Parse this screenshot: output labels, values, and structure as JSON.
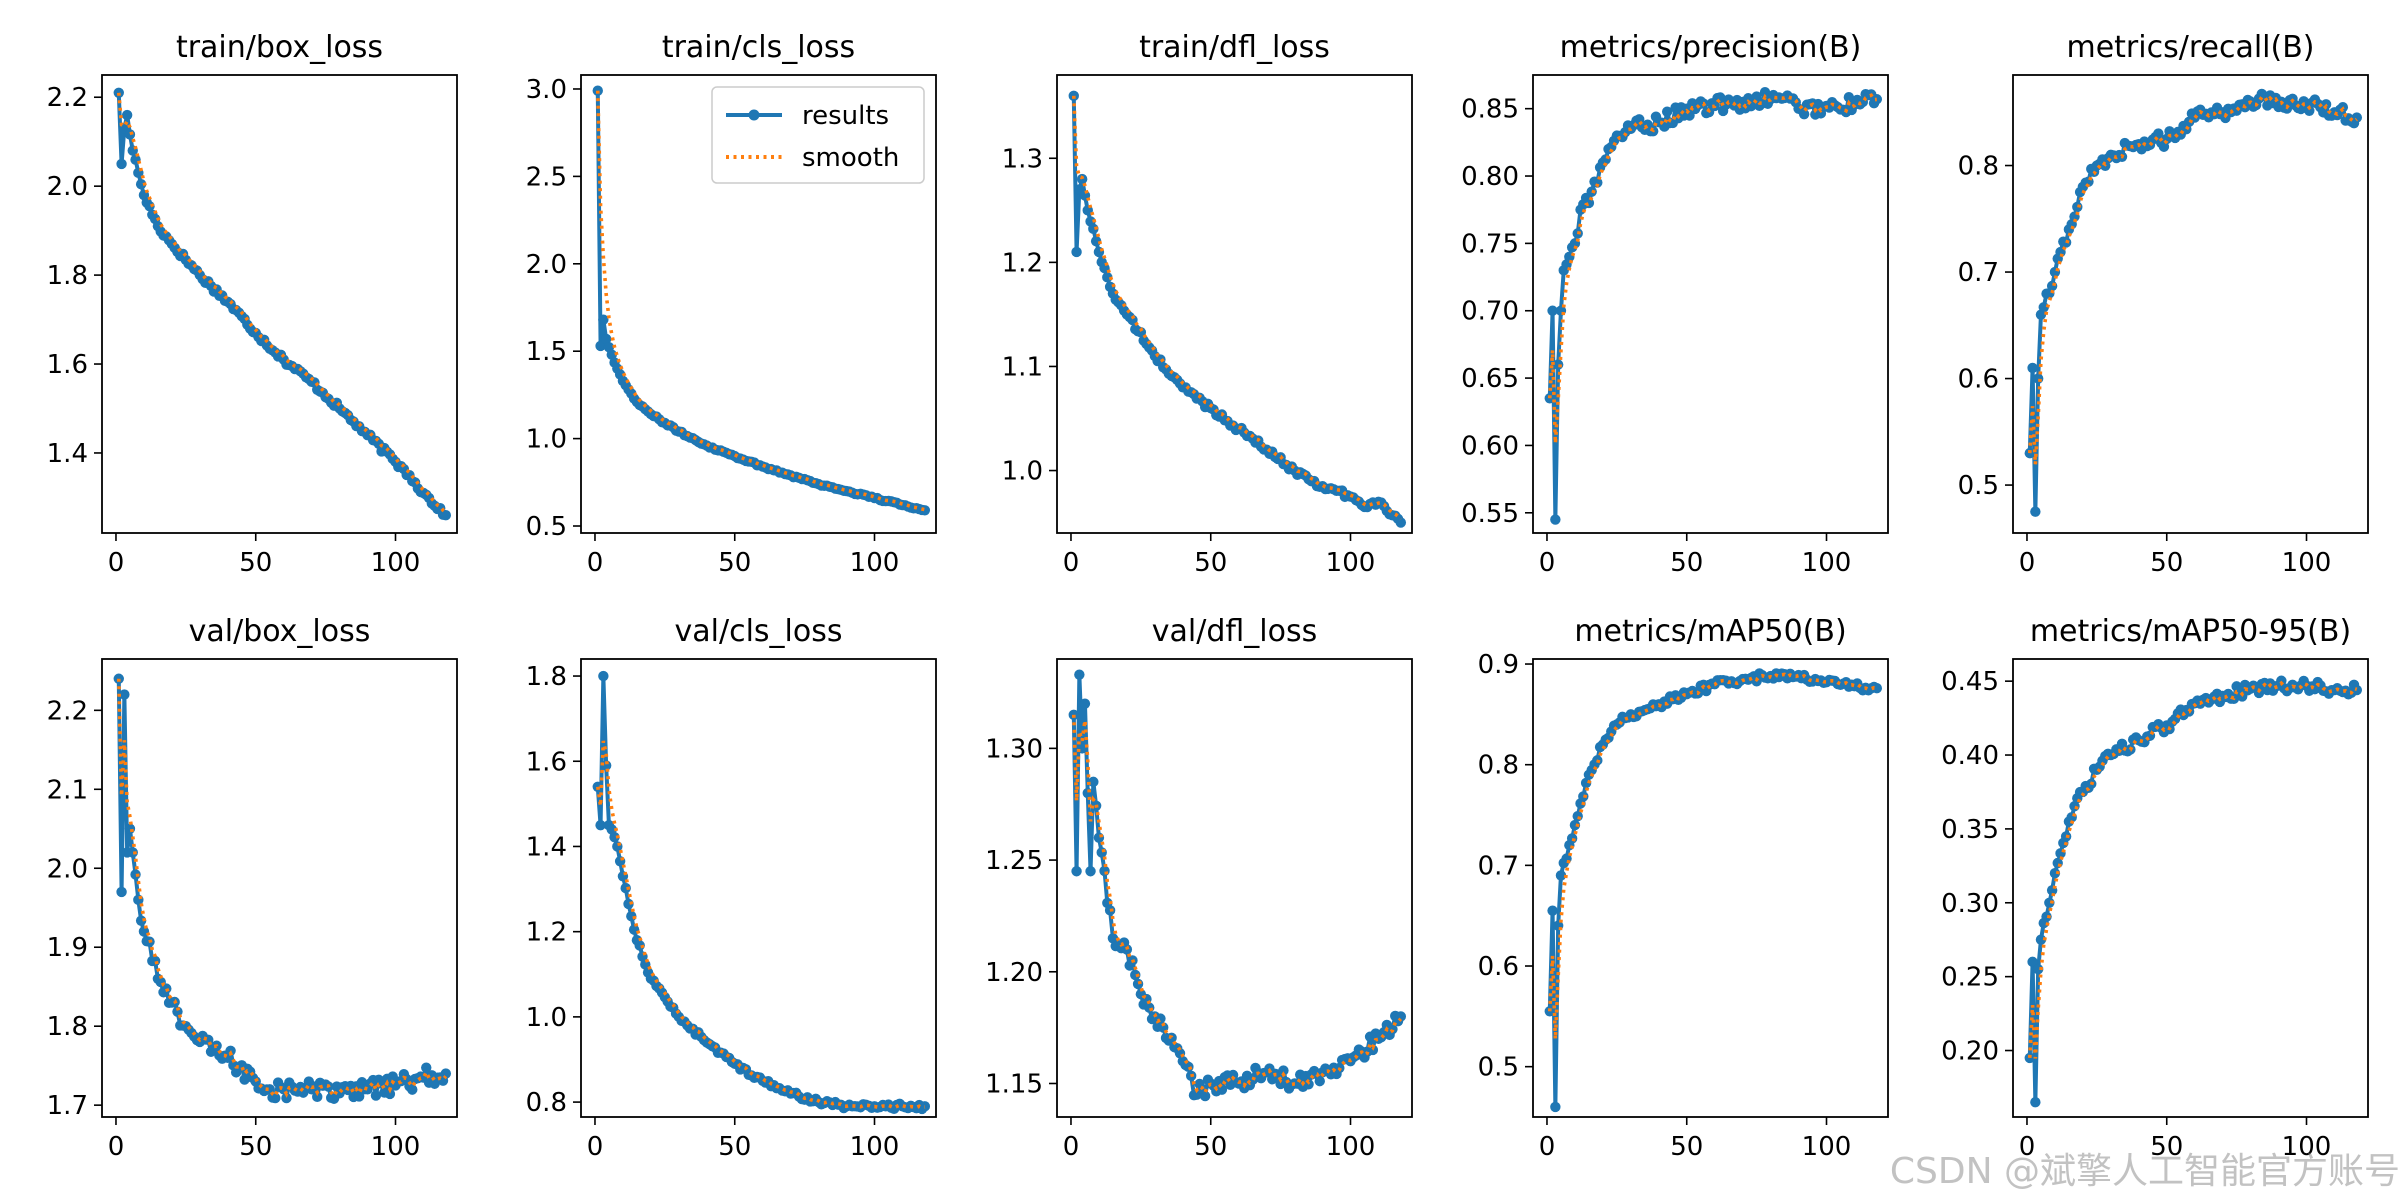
{
  "series_labels": {
    "results": "results",
    "smooth": "smooth"
  },
  "colors": {
    "results": "#1f77b4",
    "smooth": "#ff7f0e",
    "axes": "#000000",
    "background": "#ffffff"
  },
  "watermark": "CSDN @斌擎人工智能官方账号",
  "chart_data": [
    {
      "type": "line",
      "title": "train/box_loss",
      "xlim": [
        -5,
        122
      ],
      "ylim": [
        1.22,
        2.25
      ],
      "xticks": [
        0,
        50,
        100
      ],
      "yticks": [
        1.4,
        1.6,
        1.8,
        2.0,
        2.2
      ],
      "ytick_labels": [
        "1.4",
        "1.6",
        "1.8",
        "2.0",
        "2.2"
      ],
      "anchors": [
        [
          1,
          2.21
        ],
        [
          2,
          2.05
        ],
        [
          3,
          2.13
        ],
        [
          4,
          2.16
        ],
        [
          6,
          2.08
        ],
        [
          8,
          2.03
        ],
        [
          10,
          1.98
        ],
        [
          15,
          1.91
        ],
        [
          20,
          1.87
        ],
        [
          30,
          1.8
        ],
        [
          40,
          1.74
        ],
        [
          50,
          1.67
        ],
        [
          60,
          1.61
        ],
        [
          70,
          1.56
        ],
        [
          80,
          1.5
        ],
        [
          90,
          1.44
        ],
        [
          100,
          1.38
        ],
        [
          105,
          1.35
        ],
        [
          110,
          1.31
        ],
        [
          118,
          1.26
        ]
      ],
      "noise": 0.007,
      "smooth": 0.55,
      "legend": false
    },
    {
      "type": "line",
      "title": "train/cls_loss",
      "xlim": [
        -5,
        122
      ],
      "ylim": [
        0.46,
        3.08
      ],
      "xticks": [
        0,
        50,
        100
      ],
      "yticks": [
        0.5,
        1.0,
        1.5,
        2.0,
        2.5,
        3.0
      ],
      "ytick_labels": [
        "0.5",
        "1.0",
        "1.5",
        "2.0",
        "2.5",
        "3.0"
      ],
      "anchors": [
        [
          1,
          2.99
        ],
        [
          2,
          1.53
        ],
        [
          3,
          1.68
        ],
        [
          4,
          1.57
        ],
        [
          6,
          1.48
        ],
        [
          8,
          1.4
        ],
        [
          10,
          1.33
        ],
        [
          15,
          1.21
        ],
        [
          20,
          1.14
        ],
        [
          30,
          1.04
        ],
        [
          40,
          0.96
        ],
        [
          50,
          0.9
        ],
        [
          60,
          0.84
        ],
        [
          70,
          0.79
        ],
        [
          80,
          0.74
        ],
        [
          90,
          0.7
        ],
        [
          100,
          0.66
        ],
        [
          110,
          0.62
        ],
        [
          118,
          0.59
        ]
      ],
      "noise": 0.006,
      "smooth": 0.55,
      "legend": true
    },
    {
      "type": "line",
      "title": "train/dfl_loss",
      "xlim": [
        -5,
        122
      ],
      "ylim": [
        0.94,
        1.38
      ],
      "xticks": [
        0,
        50,
        100
      ],
      "yticks": [
        1.0,
        1.1,
        1.2,
        1.3
      ],
      "ytick_labels": [
        "1.0",
        "1.1",
        "1.2",
        "1.3"
      ],
      "anchors": [
        [
          1,
          1.36
        ],
        [
          2,
          1.21
        ],
        [
          3,
          1.27
        ],
        [
          4,
          1.28
        ],
        [
          6,
          1.25
        ],
        [
          10,
          1.21
        ],
        [
          15,
          1.17
        ],
        [
          20,
          1.15
        ],
        [
          30,
          1.11
        ],
        [
          40,
          1.08
        ],
        [
          50,
          1.06
        ],
        [
          60,
          1.04
        ],
        [
          70,
          1.02
        ],
        [
          80,
          1.0
        ],
        [
          90,
          0.985
        ],
        [
          100,
          0.975
        ],
        [
          105,
          0.965
        ],
        [
          110,
          0.97
        ],
        [
          118,
          0.95
        ]
      ],
      "noise": 0.003,
      "smooth": 0.55,
      "legend": false
    },
    {
      "type": "line",
      "title": "metrics/precision(B)",
      "xlim": [
        -5,
        122
      ],
      "ylim": [
        0.535,
        0.875
      ],
      "xticks": [
        0,
        50,
        100
      ],
      "yticks": [
        0.55,
        0.6,
        0.65,
        0.7,
        0.75,
        0.8,
        0.85
      ],
      "ytick_labels": [
        "0.55",
        "0.60",
        "0.65",
        "0.70",
        "0.75",
        "0.80",
        "0.85"
      ],
      "anchors": [
        [
          1,
          0.635
        ],
        [
          2,
          0.7
        ],
        [
          3,
          0.545
        ],
        [
          4,
          0.66
        ],
        [
          5,
          0.7
        ],
        [
          6,
          0.73
        ],
        [
          8,
          0.74
        ],
        [
          10,
          0.75
        ],
        [
          12,
          0.775
        ],
        [
          15,
          0.78
        ],
        [
          20,
          0.81
        ],
        [
          25,
          0.83
        ],
        [
          30,
          0.835
        ],
        [
          40,
          0.84
        ],
        [
          50,
          0.85
        ],
        [
          60,
          0.852
        ],
        [
          70,
          0.855
        ],
        [
          80,
          0.857
        ],
        [
          85,
          0.858
        ],
        [
          90,
          0.85
        ],
        [
          100,
          0.852
        ],
        [
          110,
          0.853
        ],
        [
          118,
          0.857
        ]
      ],
      "noise": 0.006,
      "smooth": 0.45,
      "legend": false
    },
    {
      "type": "line",
      "title": "metrics/recall(B)",
      "xlim": [
        -5,
        122
      ],
      "ylim": [
        0.455,
        0.885
      ],
      "xticks": [
        0,
        50,
        100
      ],
      "yticks": [
        0.5,
        0.6,
        0.7,
        0.8
      ],
      "ytick_labels": [
        "0.5",
        "0.6",
        "0.7",
        "0.8"
      ],
      "anchors": [
        [
          1,
          0.53
        ],
        [
          2,
          0.61
        ],
        [
          3,
          0.475
        ],
        [
          4,
          0.6
        ],
        [
          5,
          0.66
        ],
        [
          8,
          0.68
        ],
        [
          10,
          0.7
        ],
        [
          15,
          0.74
        ],
        [
          20,
          0.78
        ],
        [
          25,
          0.8
        ],
        [
          30,
          0.81
        ],
        [
          40,
          0.82
        ],
        [
          50,
          0.825
        ],
        [
          60,
          0.845
        ],
        [
          70,
          0.85
        ],
        [
          80,
          0.86
        ],
        [
          85,
          0.865
        ],
        [
          90,
          0.855
        ],
        [
          100,
          0.858
        ],
        [
          110,
          0.85
        ],
        [
          118,
          0.845
        ]
      ],
      "noise": 0.007,
      "smooth": 0.45,
      "legend": false
    },
    {
      "type": "line",
      "title": "val/box_loss",
      "xlim": [
        -5,
        122
      ],
      "ylim": [
        1.685,
        2.265
      ],
      "xticks": [
        0,
        50,
        100
      ],
      "yticks": [
        1.7,
        1.8,
        1.9,
        2.0,
        2.1,
        2.2
      ],
      "ytick_labels": [
        "1.7",
        "1.8",
        "1.9",
        "2.0",
        "2.1",
        "2.2"
      ],
      "anchors": [
        [
          1,
          2.24
        ],
        [
          2,
          1.97
        ],
        [
          3,
          2.22
        ],
        [
          4,
          2.02
        ],
        [
          5,
          2.05
        ],
        [
          6,
          2.02
        ],
        [
          8,
          1.96
        ],
        [
          10,
          1.92
        ],
        [
          15,
          1.86
        ],
        [
          20,
          1.83
        ],
        [
          25,
          1.8
        ],
        [
          30,
          1.78
        ],
        [
          40,
          1.76
        ],
        [
          50,
          1.73
        ],
        [
          55,
          1.72
        ],
        [
          60,
          1.72
        ],
        [
          70,
          1.72
        ],
        [
          80,
          1.715
        ],
        [
          90,
          1.72
        ],
        [
          100,
          1.725
        ],
        [
          110,
          1.735
        ],
        [
          118,
          1.74
        ]
      ],
      "noise": 0.012,
      "smooth": 0.45,
      "legend": false
    },
    {
      "type": "line",
      "title": "val/cls_loss",
      "xlim": [
        -5,
        122
      ],
      "ylim": [
        0.765,
        1.84
      ],
      "xticks": [
        0,
        50,
        100
      ],
      "yticks": [
        0.8,
        1.0,
        1.2,
        1.4,
        1.6,
        1.8
      ],
      "ytick_labels": [
        "0.8",
        "1.0",
        "1.2",
        "1.4",
        "1.6",
        "1.8"
      ],
      "anchors": [
        [
          1,
          1.54
        ],
        [
          2,
          1.45
        ],
        [
          3,
          1.8
        ],
        [
          4,
          1.59
        ],
        [
          5,
          1.45
        ],
        [
          6,
          1.44
        ],
        [
          8,
          1.4
        ],
        [
          10,
          1.33
        ],
        [
          15,
          1.18
        ],
        [
          20,
          1.09
        ],
        [
          30,
          1.0
        ],
        [
          40,
          0.94
        ],
        [
          50,
          0.89
        ],
        [
          60,
          0.85
        ],
        [
          70,
          0.82
        ],
        [
          80,
          0.8
        ],
        [
          90,
          0.79
        ],
        [
          100,
          0.79
        ],
        [
          110,
          0.79
        ],
        [
          118,
          0.79
        ]
      ],
      "noise": 0.006,
      "smooth": 0.5,
      "legend": false
    },
    {
      "type": "line",
      "title": "val/dfl_loss",
      "xlim": [
        -5,
        122
      ],
      "ylim": [
        1.135,
        1.34
      ],
      "xticks": [
        0,
        50,
        100
      ],
      "yticks": [
        1.15,
        1.2,
        1.25,
        1.3
      ],
      "ytick_labels": [
        "1.15",
        "1.20",
        "1.25",
        "1.30"
      ],
      "anchors": [
        [
          1,
          1.315
        ],
        [
          2,
          1.245
        ],
        [
          3,
          1.333
        ],
        [
          4,
          1.3
        ],
        [
          5,
          1.32
        ],
        [
          6,
          1.28
        ],
        [
          7,
          1.245
        ],
        [
          8,
          1.285
        ],
        [
          10,
          1.26
        ],
        [
          15,
          1.215
        ],
        [
          20,
          1.21
        ],
        [
          25,
          1.19
        ],
        [
          30,
          1.18
        ],
        [
          40,
          1.16
        ],
        [
          45,
          1.145
        ],
        [
          50,
          1.15
        ],
        [
          60,
          1.15
        ],
        [
          70,
          1.155
        ],
        [
          80,
          1.15
        ],
        [
          90,
          1.155
        ],
        [
          100,
          1.16
        ],
        [
          110,
          1.17
        ],
        [
          118,
          1.18
        ]
      ],
      "noise": 0.004,
      "smooth": 0.45,
      "legend": false
    },
    {
      "type": "line",
      "title": "metrics/mAP50(B)",
      "xlim": [
        -5,
        122
      ],
      "ylim": [
        0.45,
        0.905
      ],
      "xticks": [
        0,
        50,
        100
      ],
      "yticks": [
        0.5,
        0.6,
        0.7,
        0.8,
        0.9
      ],
      "ytick_labels": [
        "0.5",
        "0.6",
        "0.7",
        "0.8",
        "0.9"
      ],
      "anchors": [
        [
          1,
          0.555
        ],
        [
          2,
          0.655
        ],
        [
          3,
          0.46
        ],
        [
          4,
          0.64
        ],
        [
          5,
          0.69
        ],
        [
          8,
          0.72
        ],
        [
          10,
          0.74
        ],
        [
          15,
          0.79
        ],
        [
          20,
          0.82
        ],
        [
          25,
          0.84
        ],
        [
          30,
          0.85
        ],
        [
          40,
          0.86
        ],
        [
          50,
          0.87
        ],
        [
          60,
          0.88
        ],
        [
          70,
          0.885
        ],
        [
          80,
          0.888
        ],
        [
          90,
          0.889
        ],
        [
          100,
          0.882
        ],
        [
          110,
          0.878
        ],
        [
          118,
          0.876
        ]
      ],
      "noise": 0.004,
      "smooth": 0.45,
      "legend": false
    },
    {
      "type": "line",
      "title": "metrics/mAP50-95(B)",
      "xlim": [
        -5,
        122
      ],
      "ylim": [
        0.155,
        0.465
      ],
      "xticks": [
        0,
        50,
        100
      ],
      "yticks": [
        0.2,
        0.25,
        0.3,
        0.35,
        0.4,
        0.45
      ],
      "ytick_labels": [
        "0.20",
        "0.25",
        "0.30",
        "0.35",
        "0.40",
        "0.45"
      ],
      "anchors": [
        [
          1,
          0.195
        ],
        [
          2,
          0.26
        ],
        [
          3,
          0.165
        ],
        [
          4,
          0.255
        ],
        [
          5,
          0.275
        ],
        [
          8,
          0.3
        ],
        [
          10,
          0.32
        ],
        [
          15,
          0.355
        ],
        [
          20,
          0.375
        ],
        [
          25,
          0.39
        ],
        [
          30,
          0.4
        ],
        [
          40,
          0.41
        ],
        [
          50,
          0.42
        ],
        [
          60,
          0.435
        ],
        [
          70,
          0.44
        ],
        [
          80,
          0.445
        ],
        [
          90,
          0.447
        ],
        [
          100,
          0.447
        ],
        [
          110,
          0.444
        ],
        [
          118,
          0.444
        ]
      ],
      "noise": 0.004,
      "smooth": 0.45,
      "legend": false
    }
  ]
}
